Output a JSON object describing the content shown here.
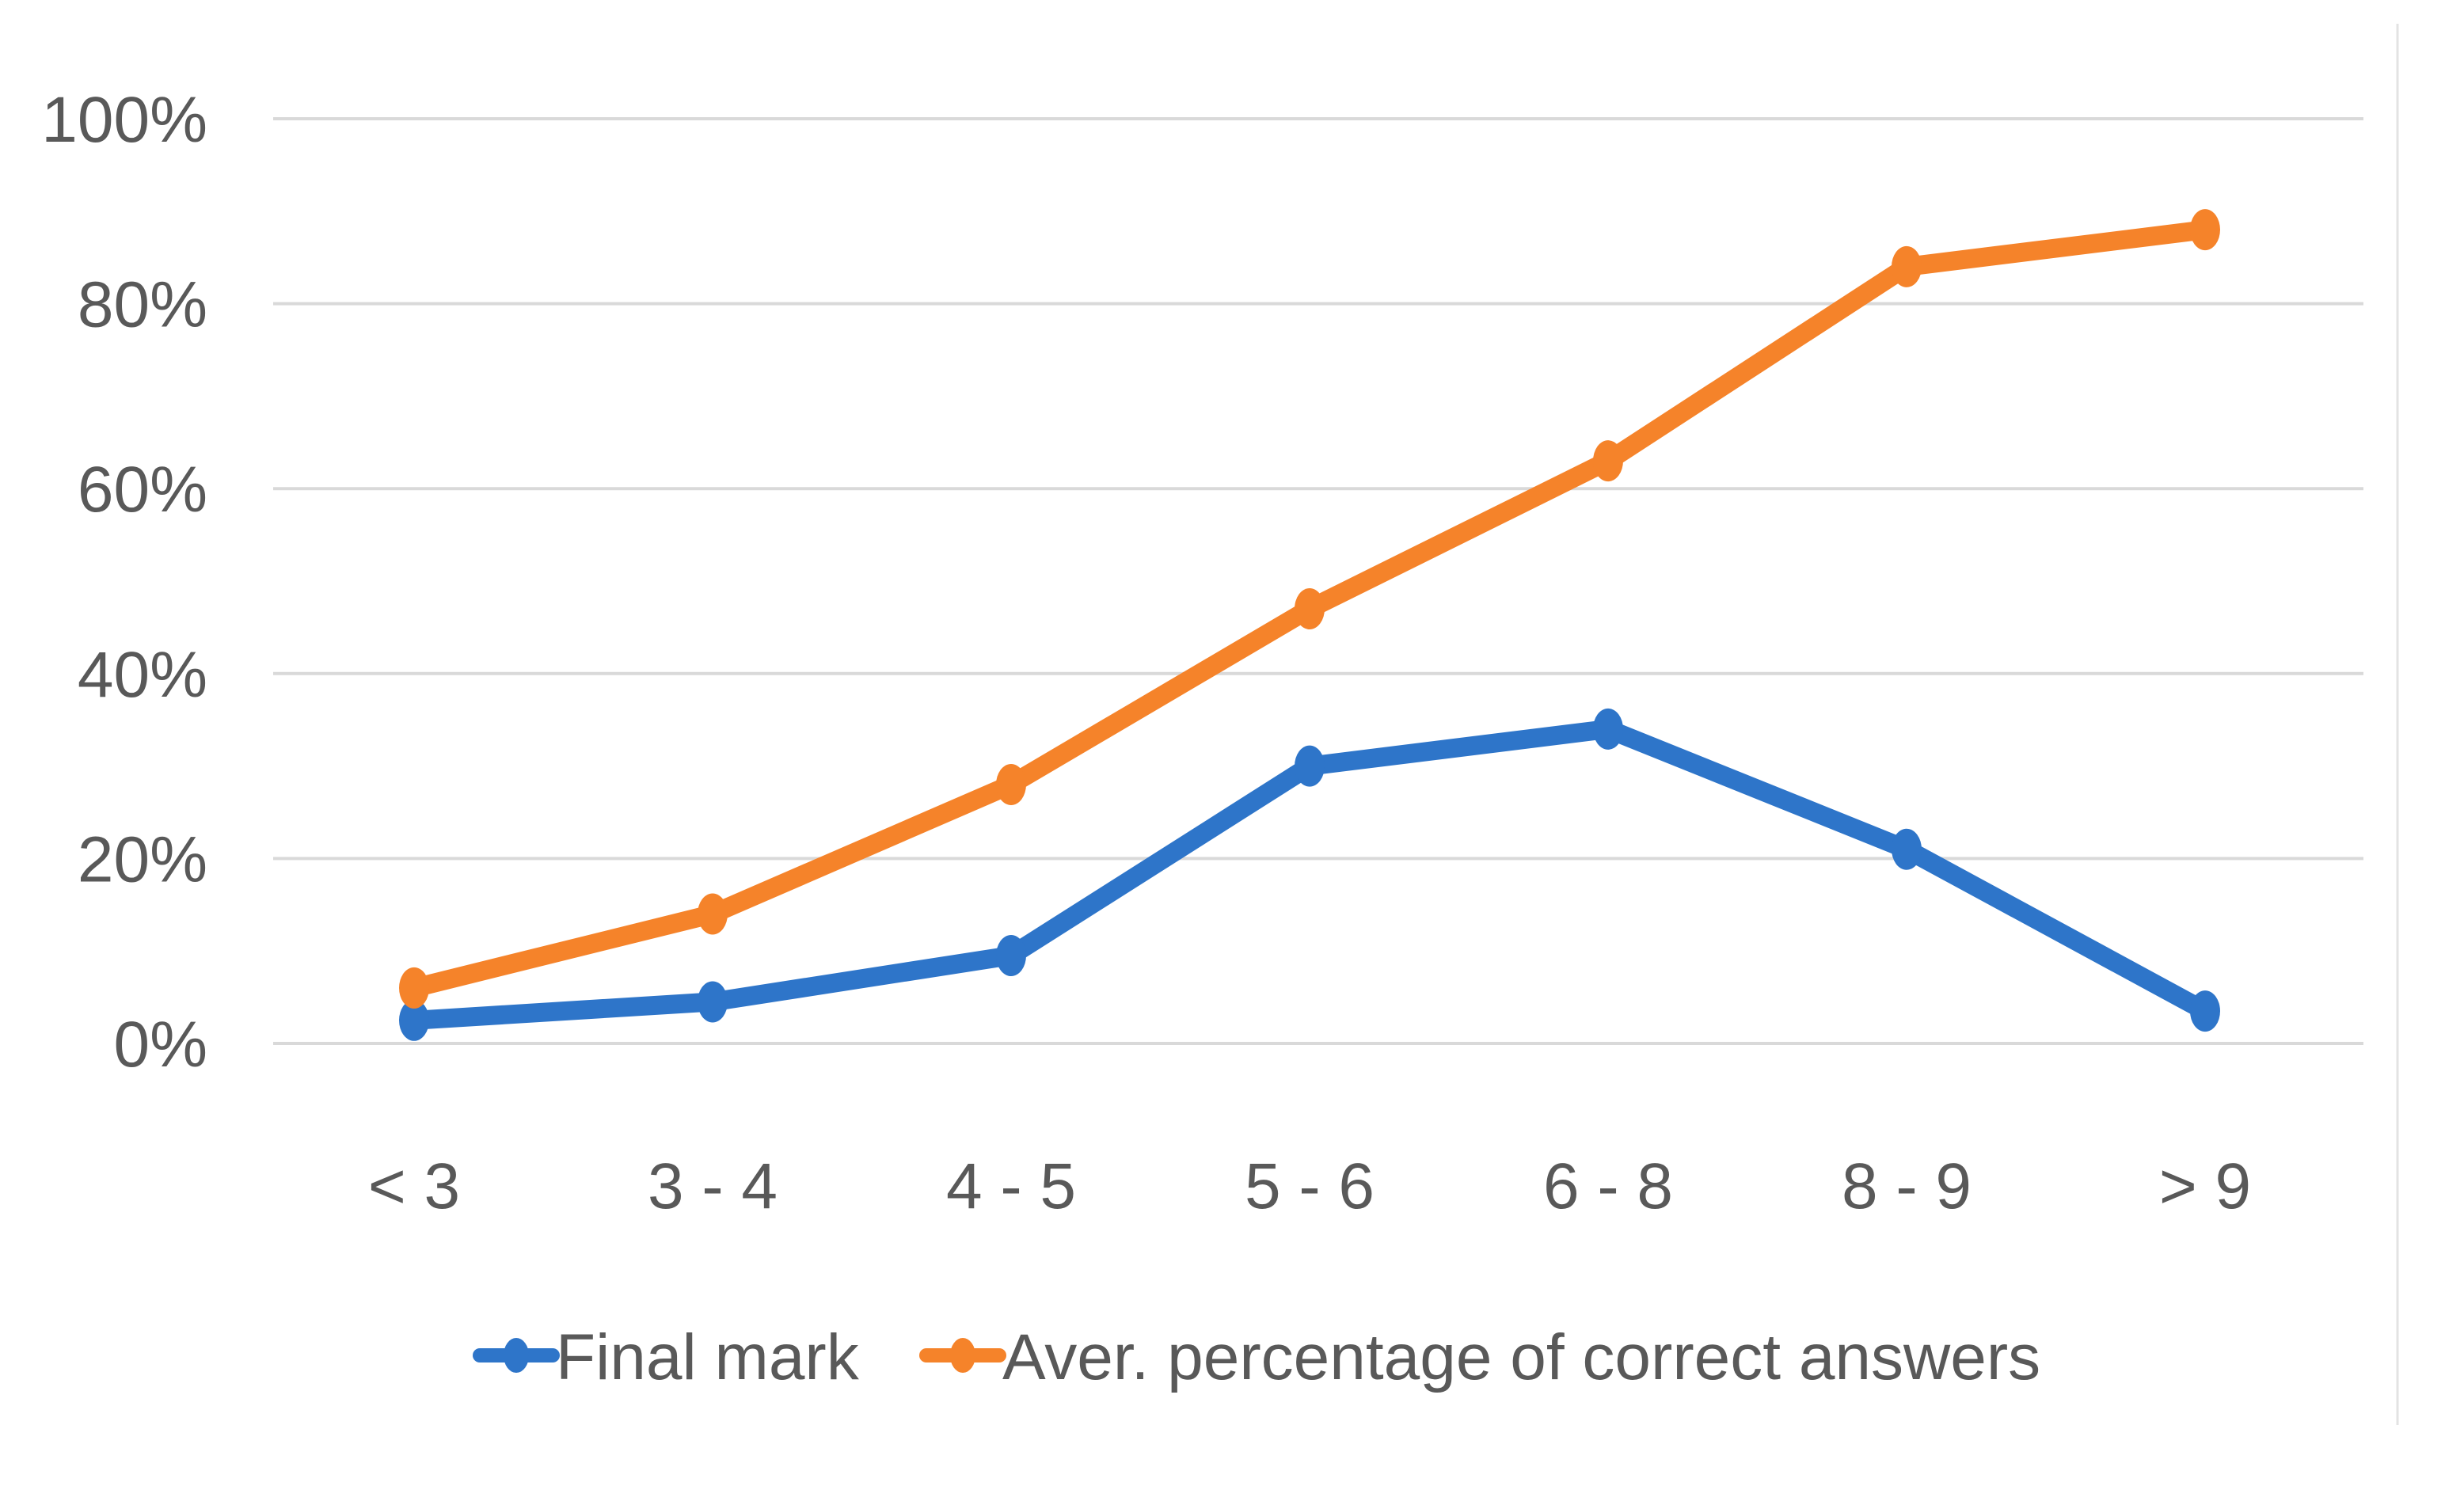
{
  "chart_data": {
    "type": "line",
    "categories": [
      "< 3",
      "3 - 4",
      "4 - 5",
      "5 - 6",
      "6 - 8",
      "8 - 9",
      "> 9"
    ],
    "series": [
      {
        "name": "Final mark",
        "values": [
          2.5,
          4.5,
          9.5,
          30,
          34,
          21,
          3.5
        ],
        "color": "#2E75C9"
      },
      {
        "name": "Aver. percentage of correct answers",
        "values": [
          6,
          14,
          28,
          47,
          63,
          84,
          88
        ],
        "color": "#F5832A"
      }
    ],
    "y_ticks": [
      "0%",
      "20%",
      "40%",
      "60%",
      "80%",
      "100%"
    ],
    "ylim": [
      0,
      100
    ],
    "grid": true,
    "legend_position": "bottom",
    "gridline_color": "#D9D9D9",
    "title": "",
    "xlabel": "",
    "ylabel": ""
  }
}
